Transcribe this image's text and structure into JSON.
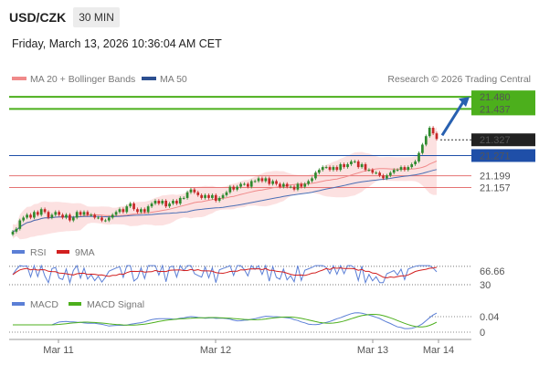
{
  "header": {
    "pair": "USD/CZK",
    "timeframe": "30 MIN",
    "timestamp": "Friday, March 13, 2026 10:36:04 AM CET"
  },
  "legend": {
    "ma20": "MA 20 + Bollinger Bands",
    "ma50": "MA 50",
    "credit": "Research © 2026 Trading Central"
  },
  "colors": {
    "up": "#2e8a2e",
    "down": "#c62828",
    "ma20": "#f08a8a",
    "ma50": "#4a6fb5",
    "bands_fill": "#fbdada",
    "resistance": "#4caf1c",
    "pivot": "#1f4fa8",
    "support": "#e57373",
    "arrow": "#2860b0",
    "rsi": "#5b7fd6",
    "rsi_ma": "#d21f1f",
    "macd": "#5b7fd6",
    "macd_signal": "#4caf1c"
  },
  "chart_data": [
    {
      "type": "candlestick",
      "title": "USD/CZK 30 MIN",
      "x_ticks": [
        "Mar 11",
        "Mar 12",
        "Mar 13",
        "Mar 14"
      ],
      "ylim": [
        20.98,
        21.5
      ],
      "levels": [
        {
          "kind": "resistance",
          "value": 21.48,
          "label": "21.480"
        },
        {
          "kind": "resistance",
          "value": 21.437,
          "label": "21.437"
        },
        {
          "kind": "last",
          "value": 21.327,
          "label": "21.327"
        },
        {
          "kind": "pivot",
          "value": 21.271,
          "label": "21.271"
        },
        {
          "kind": "support",
          "value": 21.199,
          "label": "21.199"
        },
        {
          "kind": "support",
          "value": 21.157,
          "label": "21.157"
        }
      ],
      "close": [
        21.0,
        21.01,
        21.04,
        21.05,
        21.06,
        21.05,
        21.07,
        21.06,
        21.08,
        21.07,
        21.05,
        21.06,
        21.07,
        21.06,
        21.05,
        21.06,
        21.04,
        21.05,
        21.07,
        21.06,
        21.07,
        21.06,
        21.06,
        21.05,
        21.05,
        21.04,
        21.04,
        21.05,
        21.06,
        21.07,
        21.08,
        21.07,
        21.09,
        21.1,
        21.08,
        21.07,
        21.08,
        21.07,
        21.09,
        21.1,
        21.11,
        21.1,
        21.11,
        21.09,
        21.1,
        21.11,
        21.1,
        21.12,
        21.12,
        21.14,
        21.15,
        21.14,
        21.13,
        21.12,
        21.13,
        21.12,
        21.13,
        21.11,
        21.12,
        21.13,
        21.14,
        21.16,
        21.15,
        21.16,
        21.17,
        21.17,
        21.16,
        21.18,
        21.18,
        21.19,
        21.18,
        21.19,
        21.17,
        21.18,
        21.17,
        21.16,
        21.17,
        21.16,
        21.16,
        21.15,
        21.17,
        21.16,
        21.17,
        21.18,
        21.19,
        21.21,
        21.22,
        21.23,
        21.23,
        21.22,
        21.23,
        21.22,
        21.24,
        21.23,
        21.24,
        21.25,
        21.25,
        21.23,
        21.24,
        21.22,
        21.22,
        21.21,
        21.21,
        21.2,
        21.19,
        21.2,
        21.21,
        21.22,
        21.22,
        21.23,
        21.22,
        21.23,
        21.24,
        21.25,
        21.28,
        21.31,
        21.34,
        21.37,
        21.35,
        21.33
      ],
      "macd_panel_value": "0.04",
      "macd_zero": "0"
    },
    {
      "type": "line",
      "title": "RSI",
      "series": [
        {
          "name": "RSI"
        },
        {
          "name": "9MA"
        }
      ],
      "levels": [
        {
          "value": 66.66,
          "label": "66.66"
        },
        {
          "value": 30,
          "label": "30"
        }
      ]
    },
    {
      "type": "line",
      "title": "MACD",
      "series": [
        {
          "name": "MACD"
        },
        {
          "name": "MACD Signal"
        }
      ],
      "levels": [
        {
          "value": 0.04,
          "label": "0.04"
        },
        {
          "value": 0,
          "label": "0"
        }
      ]
    }
  ]
}
